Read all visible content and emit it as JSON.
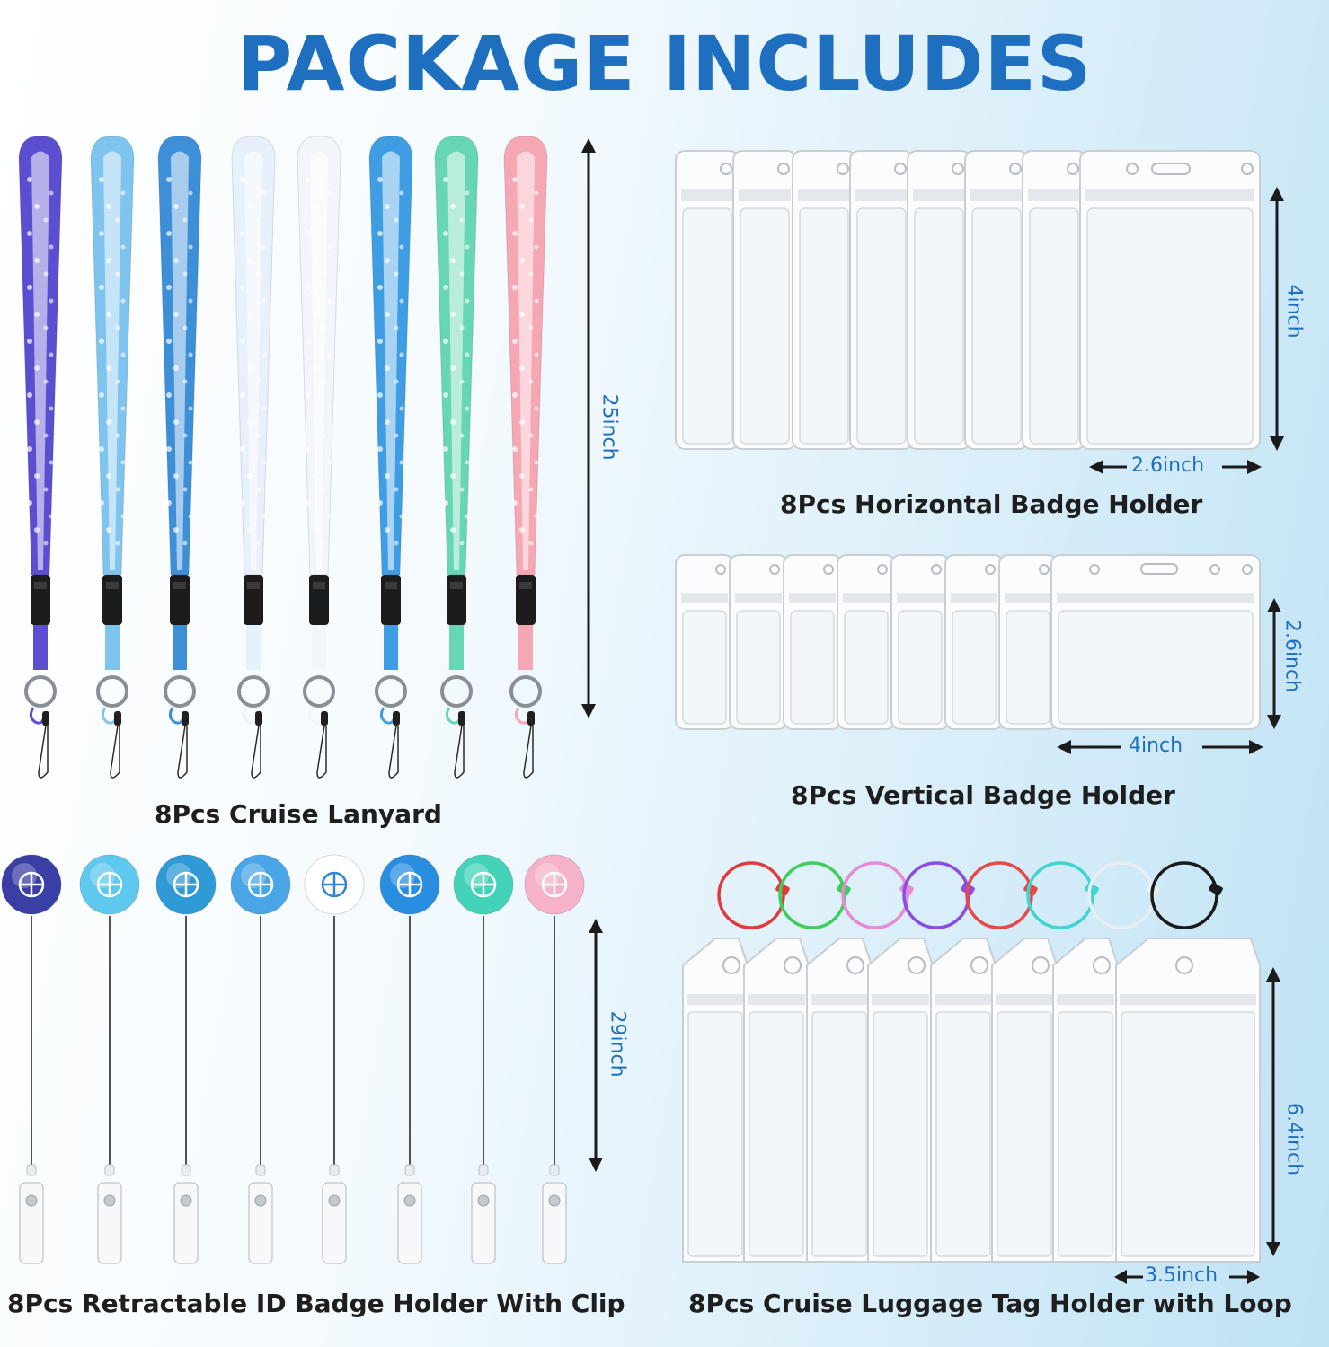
{
  "title": "PACKAGE INCLUDES",
  "colors": {
    "accent": "#1f6fc0",
    "caption": "#1e1e1e",
    "background_start": "#ffffff",
    "background_end": "#bfe2f4"
  },
  "sections": {
    "lanyard": {
      "caption": "8Pcs Cruise Lanyard",
      "dimension": "25inch",
      "count": 8,
      "lanyard_colors": [
        "#5b4ed0",
        "#7ec4ef",
        "#3d8fd8",
        "#e8f1fb",
        "#f2f6fb",
        "#3f9de4",
        "#66d6b4",
        "#f5a7b4"
      ]
    },
    "horizontal_badge": {
      "caption": "8Pcs Horizontal Badge Holder",
      "dimension_height": "4inch",
      "dimension_width": "2.6inch",
      "count": 8
    },
    "vertical_badge": {
      "caption": "8Pcs Vertical Badge Holder",
      "dimension_height": "2.6inch",
      "dimension_width": "4inch",
      "count": 8
    },
    "retractable": {
      "caption": "8Pcs Retractable ID Badge Holder With Clip",
      "dimension": "29inch",
      "count": 8,
      "badge_icons": [
        "anchor-icon",
        "turtle-icon",
        "turtle-outline-icon",
        "dolphin-icon",
        "cruise-ship-icon",
        "ship-wheel-icon",
        "sailboat-icon",
        "swimsuit-icon"
      ],
      "badge_colors": [
        "#3a3fa6",
        "#5ec8ef",
        "#2f9ad6",
        "#4aa6e6",
        "#ffffff",
        "#2a8ee0",
        "#44d3b8",
        "#f6b2c8"
      ]
    },
    "luggage": {
      "caption": "8Pcs Cruise Luggage Tag Holder with Loop",
      "dimension_height": "6.4inch",
      "dimension_width": "3.5inch",
      "count": 8,
      "loop_colors": [
        "#e23a3a",
        "#3ccf5a",
        "#e58ad6",
        "#8b4ce0",
        "#e44a4a",
        "#3fd4d0",
        "#e8eef2",
        "#1b1b1b"
      ]
    }
  }
}
